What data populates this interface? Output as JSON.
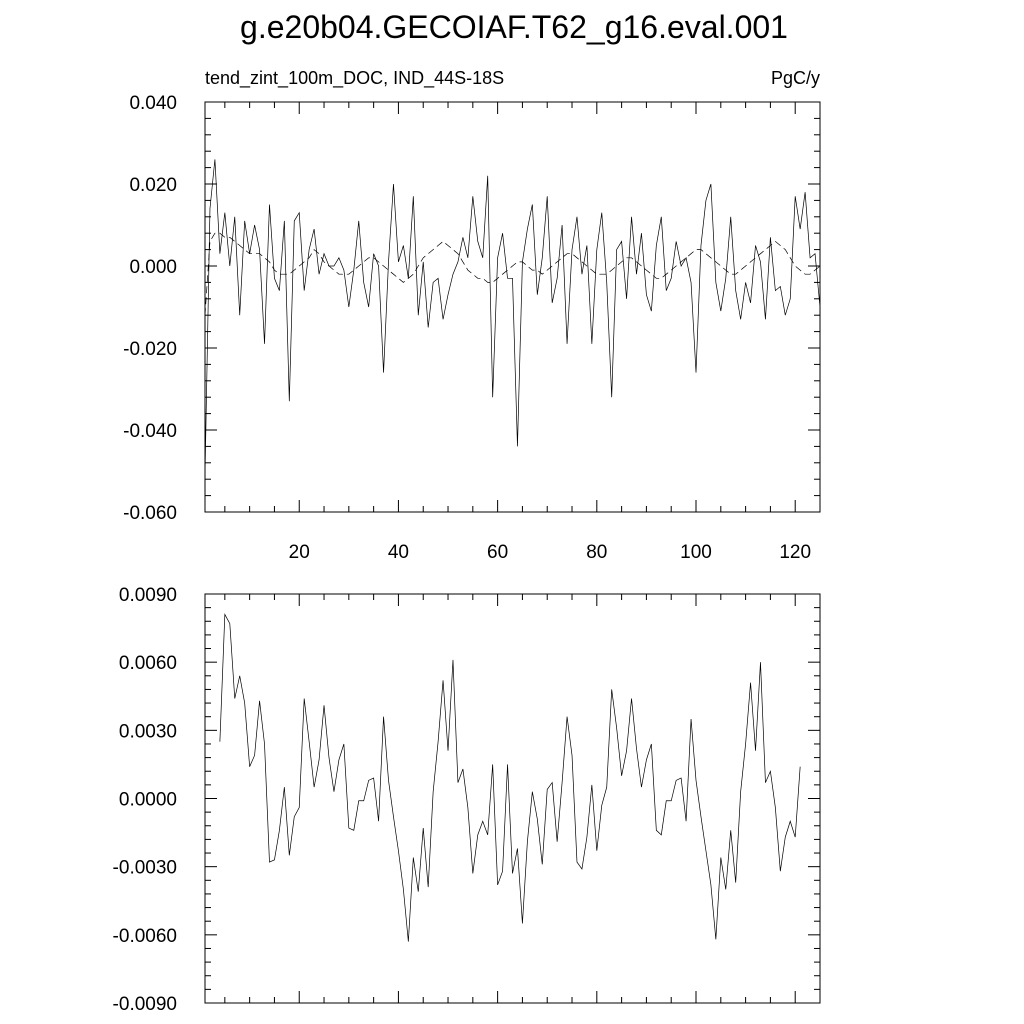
{
  "title": "g.e20b04.GECOIAF.T62_g16.eval.001",
  "top_left_label": "tend_zint_100m_DOC, IND_44S-18S",
  "top_right_label": "PgC/y",
  "chart_data": [
    {
      "type": "line",
      "xlim": [
        1,
        125
      ],
      "ylim": [
        -0.06,
        0.04
      ],
      "x_ticks": [
        20,
        40,
        60,
        80,
        100,
        120
      ],
      "x_tick_labels": [
        "20",
        "40",
        "60",
        "80",
        "100",
        "120"
      ],
      "y_ticks": [
        -0.06,
        -0.04,
        -0.02,
        0.0,
        0.02,
        0.04
      ],
      "y_tick_labels": [
        "-0.060",
        "-0.040",
        "-0.020",
        "0.000",
        "0.020",
        "0.040"
      ],
      "series": [
        {
          "style": "solid",
          "values": [
            -0.051,
            0.014,
            0.026,
            0.003,
            0.013,
            0.0,
            0.012,
            -0.012,
            0.011,
            0.003,
            0.01,
            0.004,
            -0.019,
            0.015,
            -0.003,
            -0.006,
            0.011,
            -0.033,
            0.011,
            0.013,
            -0.006,
            0.004,
            0.009,
            -0.002,
            0.003,
            0.0,
            0.0,
            0.002,
            -0.001,
            -0.01,
            -0.001,
            0.011,
            -0.004,
            -0.01,
            0.003,
            0.0,
            -0.026,
            0.001,
            0.02,
            0.001,
            0.005,
            -0.003,
            0.017,
            -0.012,
            0.001,
            -0.015,
            -0.004,
            -0.003,
            -0.013,
            -0.007,
            -0.002,
            0.001,
            0.007,
            0.002,
            0.017,
            0.006,
            0.002,
            0.022,
            -0.032,
            0.002,
            0.008,
            -0.003,
            -0.003,
            -0.044,
            0.001,
            0.009,
            0.015,
            -0.007,
            0.002,
            0.017,
            -0.009,
            -0.003,
            0.01,
            -0.019,
            0.004,
            0.012,
            -0.002,
            0.005,
            -0.019,
            0.004,
            0.013,
            -0.004,
            -0.032,
            0.004,
            0.006,
            -0.008,
            0.012,
            -0.002,
            0.008,
            -0.007,
            -0.011,
            0.005,
            0.012,
            -0.006,
            -0.003,
            0.006,
            0.0,
            0.002,
            -0.004,
            -0.026,
            0.005,
            0.016,
            0.02,
            -0.004,
            -0.011,
            -0.003,
            0.012,
            -0.006,
            -0.013,
            -0.004,
            -0.009,
            0.005,
            0.001,
            -0.013,
            0.007,
            -0.006,
            -0.005,
            -0.012,
            -0.008,
            0.017,
            0.009,
            0.018,
            0.002,
            0.003,
            -0.01
          ]
        },
        {
          "style": "dashed",
          "values": [
            -0.012,
            0.006,
            0.008,
            0.008,
            0.007,
            0.007,
            0.006,
            0.005,
            0.004,
            0.003,
            0.003,
            0.003,
            0.002,
            0.001,
            -0.001,
            -0.002,
            -0.002,
            -0.002,
            -0.001,
            0.0,
            0.001,
            0.002,
            0.004,
            0.003,
            0.001,
            0.0,
            -0.001,
            -0.002,
            -0.002,
            -0.002,
            -0.001,
            0.0,
            0.001,
            0.002,
            0.002,
            0.001,
            0.0,
            -0.001,
            -0.002,
            -0.003,
            -0.004,
            -0.003,
            -0.002,
            0.0,
            0.002,
            0.003,
            0.004,
            0.005,
            0.006,
            0.005,
            0.004,
            0.003,
            0.001,
            -0.001,
            -0.002,
            -0.003,
            -0.003,
            -0.004,
            -0.004,
            -0.003,
            -0.002,
            -0.001,
            0.0,
            0.001,
            0.001,
            0.0,
            -0.001,
            -0.001,
            -0.002,
            -0.001,
            0.0,
            0.001,
            0.002,
            0.003,
            0.003,
            0.002,
            0.001,
            0.0,
            -0.001,
            -0.002,
            -0.002,
            -0.002,
            -0.001,
            0.0,
            0.001,
            0.002,
            0.002,
            0.001,
            0.0,
            -0.001,
            -0.002,
            -0.003,
            -0.003,
            -0.002,
            -0.001,
            0.0,
            0.001,
            0.002,
            0.003,
            0.004,
            0.004,
            0.003,
            0.002,
            0.001,
            0.0,
            -0.001,
            -0.002,
            -0.002,
            -0.001,
            0.0,
            0.001,
            0.002,
            0.003,
            0.004,
            0.005,
            0.006,
            0.005,
            0.004,
            0.002,
            0.0,
            -0.001,
            -0.002,
            -0.002,
            -0.001,
            0.0
          ]
        }
      ]
    },
    {
      "type": "line",
      "xlim": [
        1,
        125
      ],
      "ylim": [
        -0.009,
        0.009
      ],
      "x_ticks": [
        20,
        40,
        60,
        80,
        100,
        120
      ],
      "y_ticks": [
        -0.009,
        -0.006,
        -0.003,
        0.0,
        0.003,
        0.006,
        0.009
      ],
      "y_tick_labels": [
        "-0.0090",
        "-0.0060",
        "-0.0030",
        "0.0000",
        "0.0030",
        "0.0060",
        "0.0090"
      ],
      "x_start": 4,
      "series": [
        {
          "style": "solid",
          "values": [
            0.0025,
            0.0081,
            0.0077,
            0.0044,
            0.0054,
            0.0042,
            0.0014,
            0.0019,
            0.0043,
            0.0024,
            -0.0028,
            -0.0027,
            -0.0014,
            0.0005,
            -0.0025,
            -0.0008,
            -0.0004,
            0.0044,
            0.0025,
            0.0005,
            0.0017,
            0.0041,
            0.0018,
            0.0003,
            0.0017,
            0.0024,
            -0.0013,
            -0.0014,
            -0.0001,
            -0.0001,
            0.0008,
            0.0009,
            -0.001,
            0.0036,
            0.0008,
            -0.0008,
            -0.0023,
            -0.004,
            -0.0063,
            -0.0026,
            -0.0041,
            -0.0013,
            -0.0039,
            0.0003,
            0.0025,
            0.0052,
            0.0021,
            0.0061,
            0.0007,
            0.0013,
            -0.0004,
            -0.0033,
            -0.0016,
            -0.001,
            -0.0016,
            0.0015,
            -0.0038,
            -0.0032,
            0.0015,
            -0.0033,
            -0.0022,
            -0.0055,
            -0.0019,
            0.0003,
            -0.0009,
            -0.0029,
            0.0004,
            0.0007,
            -0.0019,
            0.0007,
            0.0036,
            0.0019,
            -0.0028,
            -0.0031,
            -0.0017,
            0.0006,
            -0.0023,
            -0.0003,
            0.0005,
            0.0048,
            0.0031,
            0.001,
            0.0021,
            0.0044,
            0.0022,
            0.0005,
            0.0017,
            0.0024,
            -0.0014,
            -0.0016,
            -0.0001,
            -0.0001,
            0.0008,
            0.0009,
            -0.001,
            0.0035,
            0.0008,
            -0.0008,
            -0.0023,
            -0.0038,
            -0.0062,
            -0.0026,
            -0.004,
            -0.0014,
            -0.0037,
            0.0003,
            0.0024,
            0.0051,
            0.0021,
            0.006,
            0.0007,
            0.0012,
            -0.0004,
            -0.0032,
            -0.0017,
            -0.001,
            -0.0017,
            0.0014
          ]
        }
      ]
    }
  ]
}
